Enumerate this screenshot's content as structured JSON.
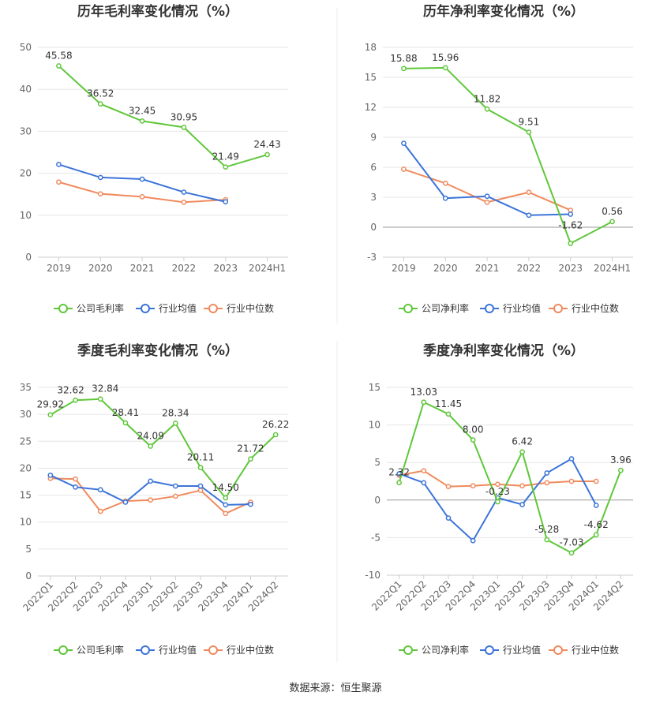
{
  "footer": {
    "source": "数据来源：恒生聚源"
  },
  "legend_names": {
    "gross": [
      "公司毛利率",
      "行业均值",
      "行业中位数"
    ],
    "net": [
      "公司净利率",
      "行业均值",
      "行业中位数"
    ]
  },
  "colors": {
    "company": "#5fc73a",
    "mean": "#3b74d9",
    "median": "#f08a5d",
    "grid": "#e6e6e6",
    "axis": "#cccccc"
  },
  "chart_data": [
    {
      "type": "line",
      "title": "历年毛利率变化情况（%）",
      "categories": [
        "2019",
        "2020",
        "2021",
        "2022",
        "2023",
        "2024H1"
      ],
      "ylim": [
        0,
        50
      ],
      "yticks": [
        0,
        10,
        20,
        30,
        40,
        50
      ],
      "grid": true,
      "legend": "bottom",
      "series": [
        {
          "name": "公司毛利率",
          "values": [
            45.58,
            36.52,
            32.45,
            30.95,
            21.49,
            24.43
          ],
          "labels": [
            "45.58",
            "36.52",
            "32.45",
            "30.95",
            "21.49",
            "24.43"
          ]
        },
        {
          "name": "行业均值",
          "values": [
            22.1,
            19.0,
            18.6,
            15.5,
            13.2,
            null
          ]
        },
        {
          "name": "行业中位数",
          "values": [
            17.9,
            15.1,
            14.4,
            13.1,
            13.7,
            null
          ]
        }
      ]
    },
    {
      "type": "line",
      "title": "历年净利率变化情况（%）",
      "categories": [
        "2019",
        "2020",
        "2021",
        "2022",
        "2023",
        "2024H1"
      ],
      "ylim": [
        -3,
        18
      ],
      "yticks": [
        -3,
        0,
        3,
        6,
        9,
        12,
        15,
        18
      ],
      "grid": true,
      "legend": "bottom",
      "series": [
        {
          "name": "公司净利率",
          "values": [
            15.88,
            15.96,
            11.82,
            9.51,
            -1.62,
            0.56
          ],
          "labels": [
            "15.88",
            "15.96",
            "11.82",
            "9.51",
            "-1.62",
            "0.56"
          ]
        },
        {
          "name": "行业均值",
          "values": [
            8.4,
            2.9,
            3.1,
            1.2,
            1.3,
            null
          ]
        },
        {
          "name": "行业中位数",
          "values": [
            5.8,
            4.4,
            2.5,
            3.5,
            1.7,
            null
          ]
        }
      ]
    },
    {
      "type": "line",
      "title": "季度毛利率变化情况（%）",
      "categories": [
        "2022Q1",
        "2022Q2",
        "2022Q3",
        "2022Q4",
        "2023Q1",
        "2023Q2",
        "2023Q3",
        "2023Q4",
        "2024Q1",
        "2024Q2"
      ],
      "ylim": [
        0,
        35
      ],
      "yticks": [
        0,
        5,
        10,
        15,
        20,
        25,
        30,
        35
      ],
      "grid": true,
      "legend": "bottom",
      "series": [
        {
          "name": "公司毛利率",
          "values": [
            29.92,
            32.62,
            32.84,
            28.41,
            24.09,
            28.34,
            20.11,
            14.5,
            21.72,
            26.22
          ],
          "labels": [
            "29.92",
            "32.62",
            "32.84",
            "28.41",
            "24.09",
            "28.34",
            "20.11",
            "14.50",
            "21.72",
            "26.22"
          ]
        },
        {
          "name": "行业均值",
          "values": [
            18.7,
            16.5,
            16.0,
            13.7,
            17.6,
            16.7,
            16.7,
            13.2,
            13.3,
            null
          ]
        },
        {
          "name": "行业中位数",
          "values": [
            18.1,
            18.0,
            12.0,
            13.9,
            14.1,
            14.8,
            15.9,
            11.6,
            13.7,
            null
          ]
        }
      ]
    },
    {
      "type": "line",
      "title": "季度净利率变化情况（%）",
      "categories": [
        "2022Q1",
        "2022Q2",
        "2022Q3",
        "2022Q4",
        "2023Q1",
        "2023Q2",
        "2023Q3",
        "2023Q4",
        "2024Q1",
        "2024Q2"
      ],
      "ylim": [
        -10,
        15
      ],
      "yticks": [
        -10,
        -5,
        0,
        5,
        10,
        15
      ],
      "grid": true,
      "legend": "bottom",
      "series": [
        {
          "name": "公司净利率",
          "values": [
            2.32,
            13.03,
            11.45,
            8.0,
            -0.23,
            6.42,
            -5.28,
            -7.03,
            -4.62,
            3.96
          ],
          "labels": [
            "2.32",
            "13.03",
            "11.45",
            "8.00",
            "-0.23",
            "6.42",
            "-5.28",
            "-7.03",
            "-4.62",
            "3.96"
          ]
        },
        {
          "name": "行业均值",
          "values": [
            3.5,
            2.3,
            -2.4,
            -5.4,
            0.3,
            -0.6,
            3.6,
            5.5,
            -0.7,
            null
          ]
        },
        {
          "name": "行业中位数",
          "values": [
            3.3,
            3.9,
            1.8,
            1.9,
            2.1,
            1.9,
            2.3,
            2.5,
            2.5,
            null
          ]
        }
      ]
    }
  ]
}
